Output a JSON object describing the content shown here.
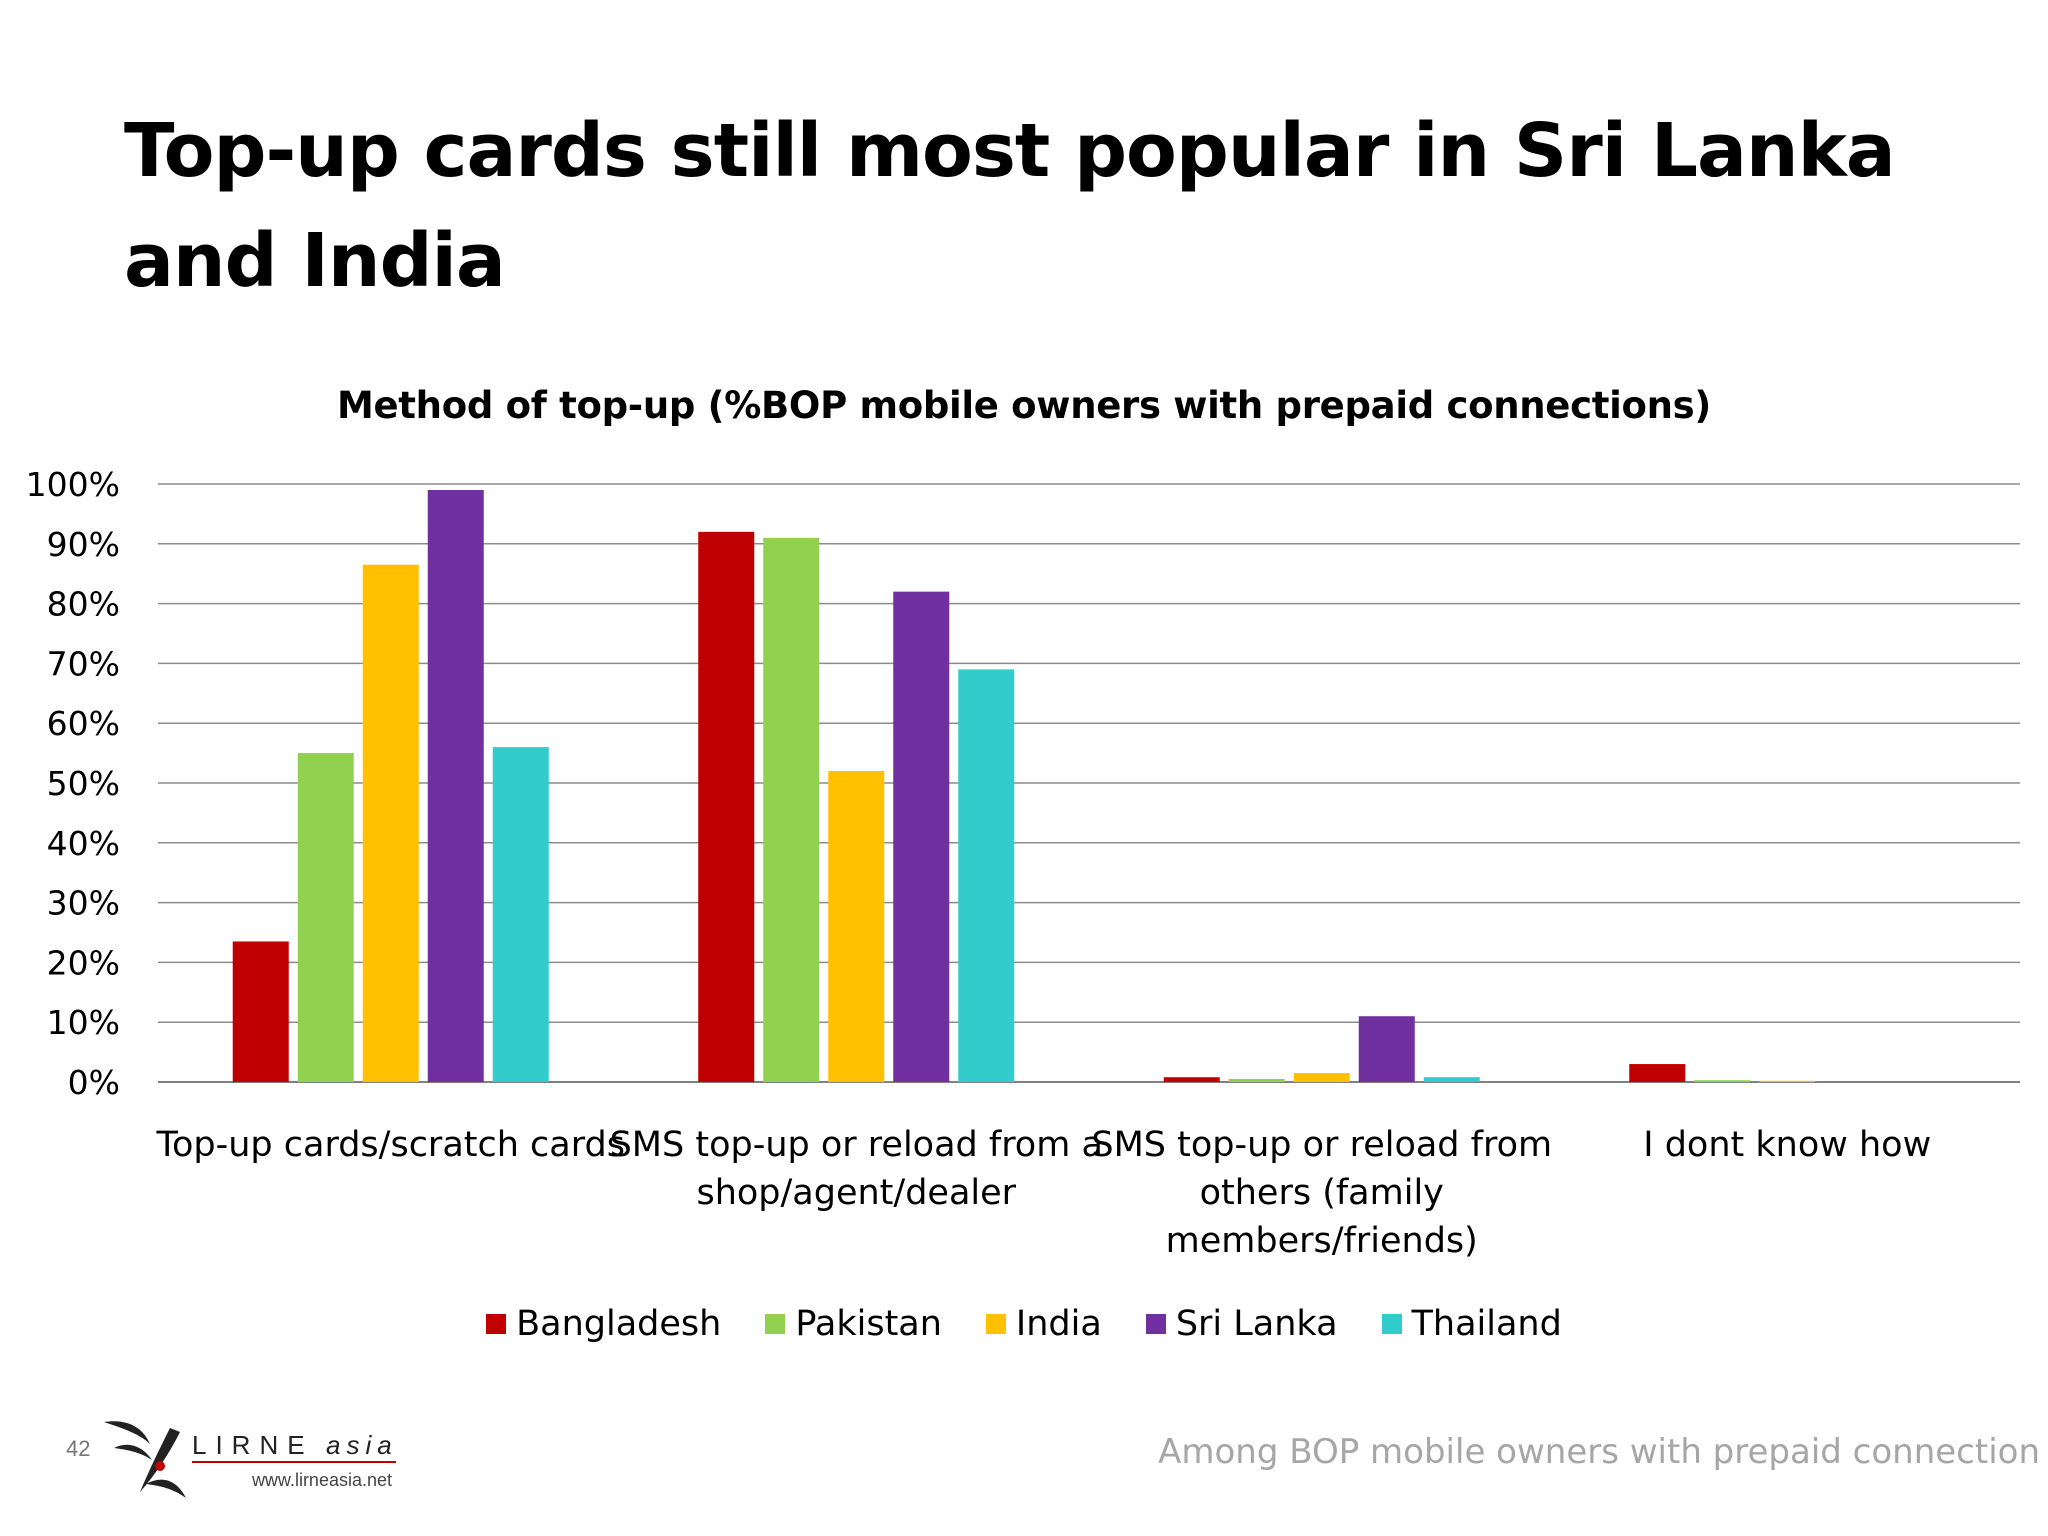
{
  "slide": {
    "title": "Top-up cards still most popular in Sri Lanka and India",
    "page_number": "42",
    "footer_note": "Among BOP mobile owners with prepaid connection",
    "logo_text": "LIRNEasia",
    "logo_url_text": "www.lirneasia.net"
  },
  "chart_data": {
    "type": "bar",
    "title": "Method of top-up (%BOP mobile owners with prepaid connections)",
    "categories": [
      [
        "Top-up cards/scratch cards"
      ],
      [
        "SMS top-up or reload from a",
        "shop/agent/dealer"
      ],
      [
        "SMS top-up or reload from",
        "others (family",
        "members/friends)"
      ],
      [
        "I dont know how"
      ]
    ],
    "series": [
      {
        "name": "Bangladesh",
        "color": "#C00000",
        "values": [
          23.5,
          92,
          0.8,
          3
        ]
      },
      {
        "name": "Pakistan",
        "color": "#92D050",
        "values": [
          55,
          91,
          0.5,
          0.3
        ]
      },
      {
        "name": "India",
        "color": "#FFC000",
        "values": [
          86.5,
          52,
          1.5,
          0.2
        ]
      },
      {
        "name": "Sri Lanka",
        "color": "#7030A0",
        "values": [
          99,
          82,
          11,
          0
        ]
      },
      {
        "name": "Thailand",
        "color": "#33CCCC",
        "values": [
          56,
          69,
          0.8,
          0
        ]
      }
    ],
    "y_ticks": [
      "0%",
      "10%",
      "20%",
      "30%",
      "40%",
      "50%",
      "60%",
      "70%",
      "80%",
      "90%",
      "100%"
    ],
    "ylim": [
      0,
      100
    ],
    "grid": true,
    "legend_position": "bottom"
  }
}
